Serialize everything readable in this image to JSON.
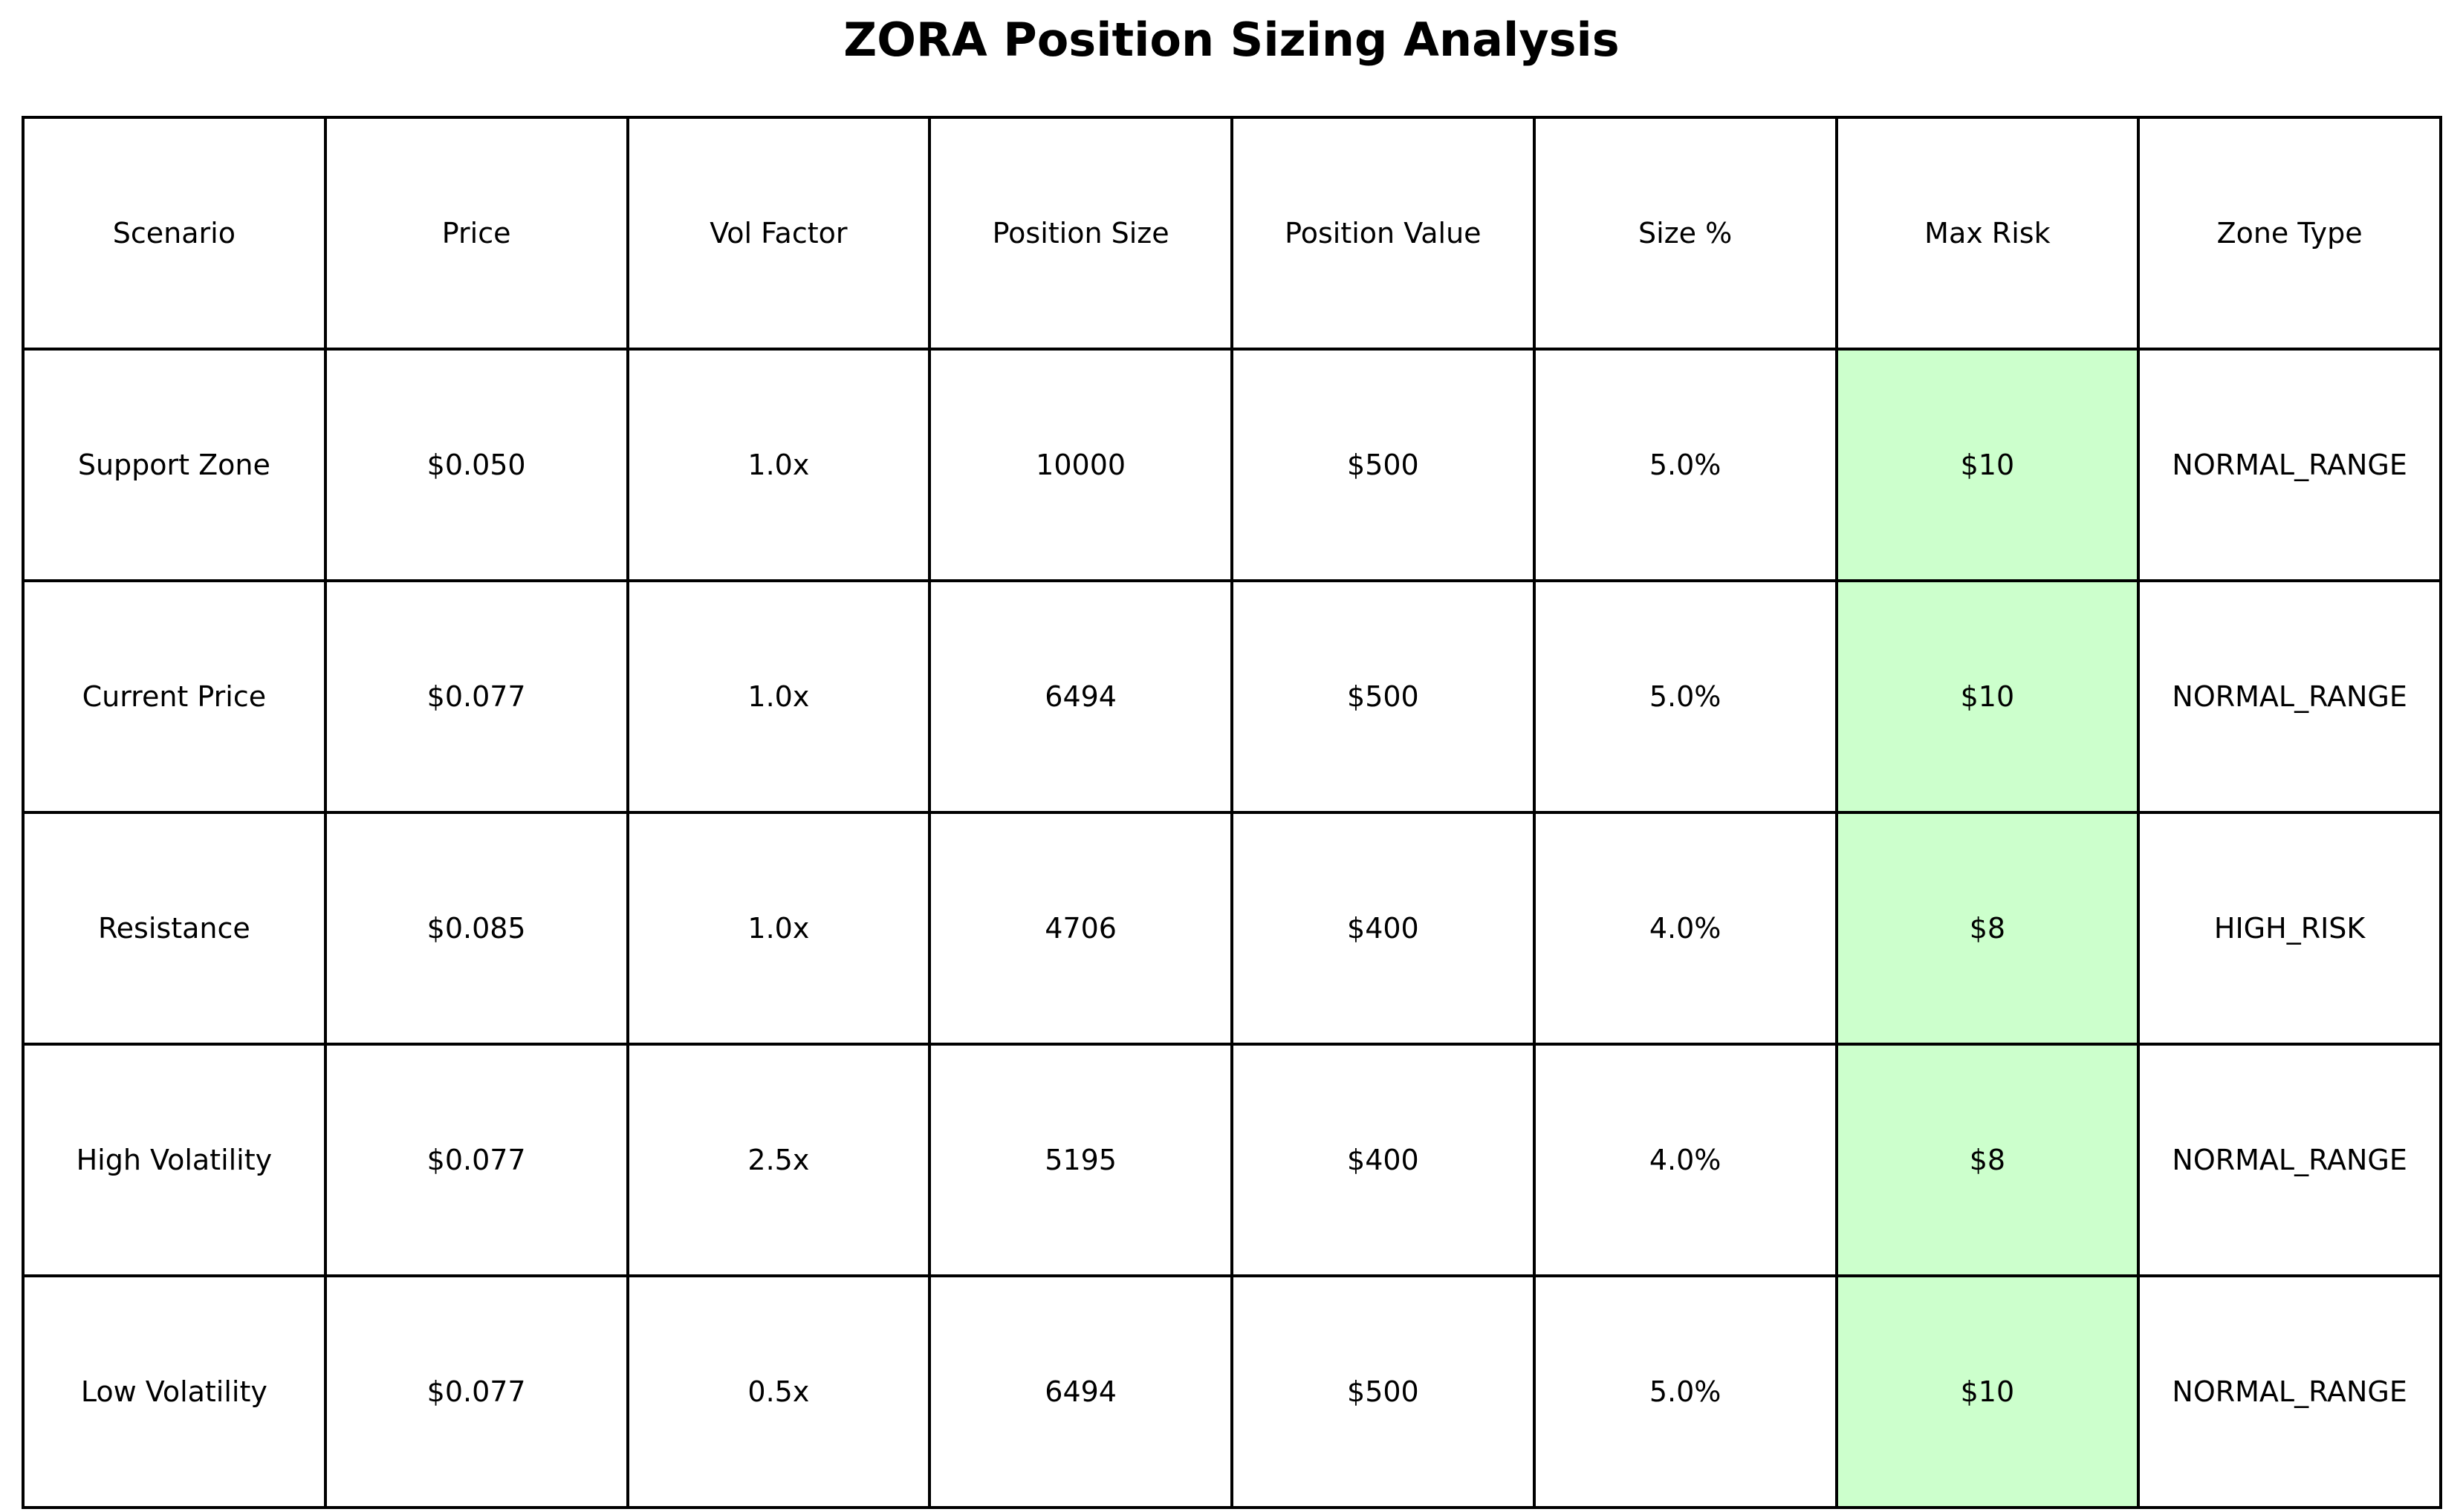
{
  "chart_data": {
    "type": "table",
    "title": "ZORA Position Sizing Analysis",
    "columns": [
      "Scenario",
      "Price",
      "Vol Factor",
      "Position Size",
      "Position Value",
      "Size %",
      "Max Risk",
      "Zone Type"
    ],
    "rows": [
      [
        "Support Zone",
        "$0.050",
        "1.0x",
        "10000",
        "$500",
        "5.0%",
        "$10",
        "NORMAL_RANGE"
      ],
      [
        "Current Price",
        "$0.077",
        "1.0x",
        "6494",
        "$500",
        "5.0%",
        "$10",
        "NORMAL_RANGE"
      ],
      [
        "Resistance",
        "$0.085",
        "1.0x",
        "4706",
        "$400",
        "4.0%",
        "$8",
        "HIGH_RISK"
      ],
      [
        "High Volatility",
        "$0.077",
        "2.5x",
        "5195",
        "$400",
        "4.0%",
        "$8",
        "NORMAL_RANGE"
      ],
      [
        "Low Volatility",
        "$0.077",
        "0.5x",
        "6494",
        "$500",
        "5.0%",
        "$10",
        "NORMAL_RANGE"
      ]
    ],
    "highlight_column": "Max Risk",
    "highlight_color": "#ccffcc",
    "grid": true
  }
}
